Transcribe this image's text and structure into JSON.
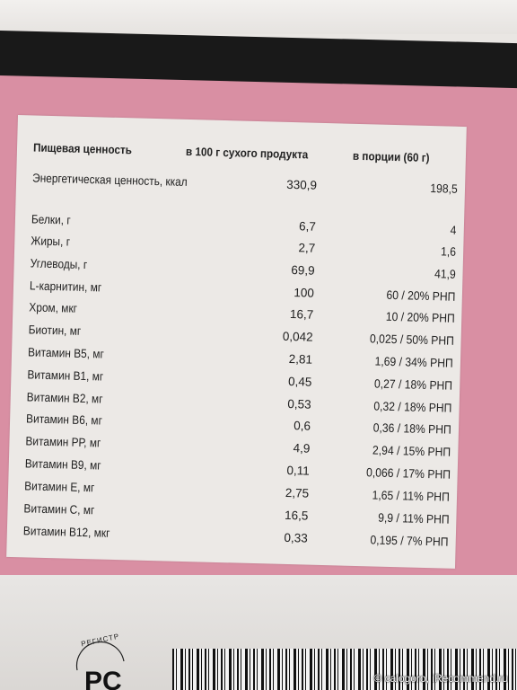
{
  "table": {
    "header": {
      "col1": "Пищевая ценность",
      "col2": "в 100 г сухого продукта",
      "col3": "в порции (60 г)"
    },
    "rows": [
      {
        "label": "Энергетическая ценность, ккал",
        "per100": "330,9",
        "portion": "198,5"
      },
      {
        "label": "Белки, г",
        "per100": "6,7",
        "portion": "4"
      },
      {
        "label": "Жиры, г",
        "per100": "2,7",
        "portion": "1,6"
      },
      {
        "label": "Углеводы, г",
        "per100": "69,9",
        "portion": "41,9"
      },
      {
        "label": "L-карнитин, мг",
        "per100": "100",
        "portion": "60 / 20% РНП"
      },
      {
        "label": "Хром, мкг",
        "per100": "16,7",
        "portion": "10 / 20% РНП"
      },
      {
        "label": "Биотин, мг",
        "per100": "0,042",
        "portion": "0,025 / 50% РНП"
      },
      {
        "label": "Витамин В5, мг",
        "per100": "2,81",
        "portion": "1,69 / 34% РНП"
      },
      {
        "label": "Витамин В1, мг",
        "per100": "0,45",
        "portion": "0,27 / 18% РНП"
      },
      {
        "label": "Витамин В2, мг",
        "per100": "0,53",
        "portion": "0,32 / 18% РНП"
      },
      {
        "label": "Витамин В6, мг",
        "per100": "0,6",
        "portion": "0,36 / 18% РНП"
      },
      {
        "label": "Витамин РР, мг",
        "per100": "4,9",
        "portion": "2,94 / 15% РНП"
      },
      {
        "label": "Витамин В9, мг",
        "per100": "0,11",
        "portion": "0,066 / 17% РНП"
      },
      {
        "label": "Витамин Е, мг",
        "per100": "2,75",
        "portion": "1,65 / 11% РНП"
      },
      {
        "label": "Витамин С, мг",
        "per100": "16,5",
        "portion": "9,9 / 11% РНП"
      },
      {
        "label": "Витамин В12, мкг",
        "per100": "0,33",
        "portion": "0,195 / 7% РНП"
      }
    ]
  },
  "logo": {
    "text": "РЕГИСТР"
  },
  "watermark": "© calogoro, iRecommend.ru",
  "colors": {
    "pink": "#d98fa3",
    "black": "#191919",
    "panel": "#ece9e6"
  }
}
